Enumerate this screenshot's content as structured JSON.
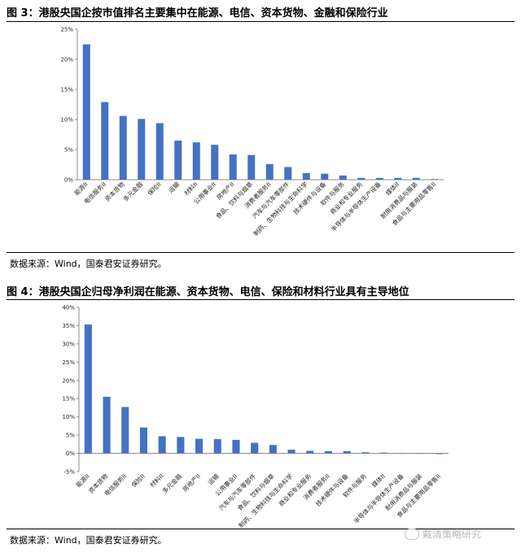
{
  "charts": [
    {
      "title": "图 3：港股央国企按市值排名主要集中在能源、电信、资本货物、金融和保险行业",
      "source": "数据来源：Wind，国泰君安证券研究。"
    },
    {
      "title": "图 4：港股央国企归母净利润在能源、资本货物、电信、保险和材料行业具有主导地位",
      "source": "数据来源：Wind，国泰君安证券研究。"
    }
  ],
  "watermark": "戴清策略研究",
  "colors": {
    "bar": "#4472c4",
    "axis": "#8c8c8c",
    "rule": "#000000"
  },
  "chart_data": [
    {
      "type": "bar",
      "title": "",
      "xlabel": "",
      "ylabel": "",
      "ylim": [
        0,
        25
      ],
      "yticks": [
        0,
        5,
        10,
        15,
        20,
        25
      ],
      "ytick_labels": [
        "0%",
        "5%",
        "10%",
        "15%",
        "20%",
        "25%"
      ],
      "grid": false,
      "legend": "none",
      "categories": [
        "能源II",
        "电信服务II",
        "资本货物",
        "多元金融",
        "保险II",
        "运输",
        "材料II",
        "公用事业II",
        "房地产II",
        "食品、饮料与烟草",
        "消费者服务II",
        "汽车与汽车零部件",
        "制药、生物科技与生命科学",
        "技术硬件与设备",
        "软件与服务",
        "商业和专业服务",
        "半导体与半导体生产设备",
        "媒体II",
        "耐用消费品与服装",
        "食品与主要用品零售II"
      ],
      "values": [
        22.5,
        12.9,
        10.6,
        10.1,
        9.4,
        6.5,
        6.2,
        5.8,
        4.2,
        4.1,
        2.6,
        2.1,
        1.1,
        1.0,
        0.7,
        0.3,
        0.3,
        0.3,
        0.3,
        0.1
      ]
    },
    {
      "type": "bar",
      "title": "",
      "xlabel": "",
      "ylabel": "",
      "ylim": [
        -5,
        40
      ],
      "yticks": [
        -5,
        0,
        5,
        10,
        15,
        20,
        25,
        30,
        35,
        40
      ],
      "ytick_labels": [
        "-5%",
        "0%",
        "5%",
        "10%",
        "15%",
        "20%",
        "25%",
        "30%",
        "35%",
        "40%"
      ],
      "grid": false,
      "legend": "none",
      "categories": [
        "能源II",
        "资本货物",
        "电信服务II",
        "保险II",
        "材料II",
        "多元金融",
        "房地产II",
        "运输",
        "公用事业II",
        "汽车与汽车零部件",
        "食品、饮料与烟草",
        "制药、生物科技与生命科学",
        "商业和专业服务",
        "消费者服务II",
        "技术硬件与设备",
        "软件与服务",
        "媒体II",
        "半导体与半导体生产设备",
        "耐用消费品与服装",
        "食品与主要用品零售II"
      ],
      "values": [
        35.3,
        15.5,
        12.7,
        7.1,
        4.7,
        4.5,
        4.0,
        3.9,
        3.7,
        2.9,
        2.3,
        1.0,
        0.7,
        0.6,
        0.6,
        0.3,
        0.2,
        0.1,
        0.1,
        -0.2
      ]
    }
  ]
}
